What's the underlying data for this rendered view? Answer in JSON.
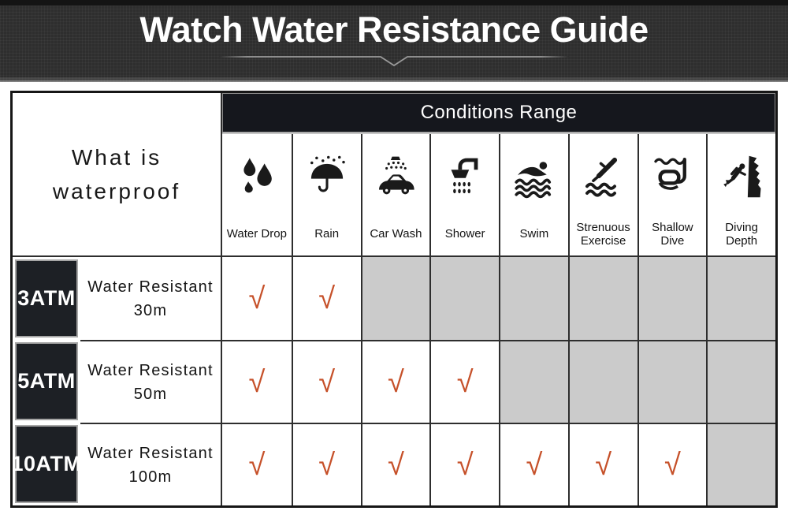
{
  "header": {
    "title": "Watch Water Resistance Guide"
  },
  "table": {
    "corner": {
      "line1": "What is",
      "line2": "waterproof"
    },
    "conditions_title": "Conditions Range",
    "check_glyph": "√",
    "columns": [
      {
        "label": "Water Drop",
        "icon": "water-drop-icon"
      },
      {
        "label": "Rain",
        "icon": "rain-umbrella-icon"
      },
      {
        "label": "Car Wash",
        "icon": "car-wash-icon"
      },
      {
        "label": "Shower",
        "icon": "shower-icon"
      },
      {
        "label": "Swim",
        "icon": "swim-icon"
      },
      {
        "label": "Strenuous Exercise",
        "icon": "strenuous-exercise-icon"
      },
      {
        "label": "Shallow Dive",
        "icon": "shallow-dive-icon"
      },
      {
        "label": "Diving Depth",
        "icon": "diving-depth-icon"
      }
    ],
    "rows": [
      {
        "rating": "3ATM",
        "description": "Water Resistant",
        "depth": "30m",
        "conditions": [
          "check",
          "check",
          "na",
          "na",
          "na",
          "na",
          "na",
          "na"
        ]
      },
      {
        "rating": "5ATM",
        "description": "Water Resistant",
        "depth": "50m",
        "conditions": [
          "check",
          "check",
          "check",
          "check",
          "na",
          "na",
          "na",
          "na"
        ]
      },
      {
        "rating": "10ATM",
        "description": "Water Resistant",
        "depth": "100m",
        "conditions": [
          "check",
          "check",
          "check",
          "check",
          "check",
          "check",
          "check",
          "na"
        ]
      }
    ],
    "colors": {
      "check": "#c6512a",
      "unavailable_cell": "#cbcbcb",
      "conditions_bar_bg": "#15171d",
      "rating_cell_bg": "#1d2025"
    }
  }
}
